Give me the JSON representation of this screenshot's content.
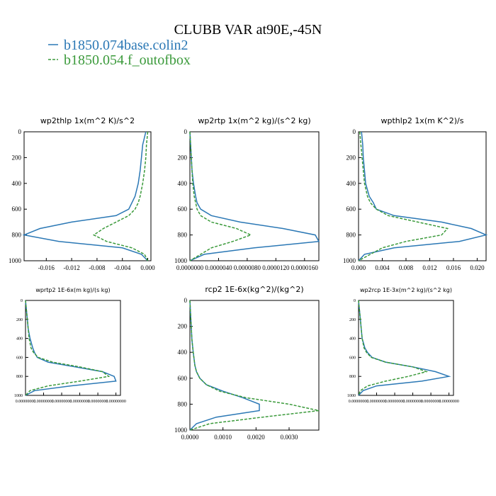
{
  "title": "CLUBB VAR at90E,-45N",
  "legend": [
    {
      "name": "b1850.074base.colin2",
      "color": "#2b78b5"
    },
    {
      "name": "b1850.054.f_outofbox",
      "color": "#3b9a3b"
    }
  ],
  "chart_data": [
    {
      "type": "line",
      "title": "wp2thlp  1x(m^2 K)/s^2",
      "y": [
        0,
        100,
        200,
        300,
        400,
        500,
        550,
        600,
        650,
        700,
        750,
        800,
        850,
        900,
        950,
        1000
      ],
      "series": [
        {
          "values": [
            -0.0003,
            -0.0008,
            -0.001,
            -0.0012,
            -0.0015,
            -0.002,
            -0.0025,
            -0.003,
            -0.005,
            -0.012,
            -0.017,
            -0.0195,
            -0.014,
            -0.004,
            -0.001,
            0
          ]
        },
        {
          "values": [
            0,
            -0.0002,
            -0.0003,
            -0.0005,
            -0.0008,
            -0.0012,
            -0.0015,
            -0.002,
            -0.003,
            -0.005,
            -0.007,
            -0.0085,
            -0.0065,
            -0.0025,
            -0.0005,
            0
          ]
        }
      ],
      "xlim": [
        -0.0195,
        0.0005
      ],
      "xticks": [
        {
          "value": -0.016,
          "label": "-0.016"
        },
        {
          "value": -0.012,
          "label": "-0.012"
        },
        {
          "value": -0.008,
          "label": "-0.008"
        },
        {
          "value": -0.004,
          "label": "-0.004"
        },
        {
          "value": 0,
          "label": "0.000"
        }
      ],
      "ylim": [
        0,
        1000
      ],
      "yticks": [
        0,
        200,
        400,
        600,
        800,
        1000
      ],
      "y_inverted": true
    },
    {
      "type": "line",
      "title": "wp2rtp  1x(m^2 kg)/(s^2 kg)",
      "y": [
        0,
        100,
        200,
        300,
        400,
        500,
        550,
        600,
        650,
        700,
        750,
        800,
        850,
        900,
        950,
        1000
      ],
      "series": [
        {
          "values": [
            0,
            1e-07,
            2e-07,
            3e-07,
            5e-07,
            8e-07,
            1e-06,
            1.5e-06,
            3e-06,
            7e-06,
            1.3e-05,
            1.75e-05,
            1.8e-05,
            9e-06,
            2e-06,
            0
          ]
        },
        {
          "values": [
            0,
            1e-07,
            2e-07,
            3e-07,
            4e-07,
            6e-07,
            8e-07,
            1e-06,
            1.5e-06,
            3e-06,
            6.5e-06,
            8.5e-06,
            6e-06,
            3e-06,
            1.5e-06,
            0
          ]
        }
      ],
      "xlim": [
        0,
        1.8e-05
      ],
      "xticks": [
        {
          "value": 0,
          "label": "0.0000000"
        },
        {
          "value": 4e-06,
          "label": "0.0000040"
        },
        {
          "value": 8e-06,
          "label": "0.0000080"
        },
        {
          "value": 1.2e-05,
          "label": "0.0000120"
        },
        {
          "value": 1.6e-05,
          "label": "0.0000160"
        }
      ],
      "ylim": [
        0,
        1000
      ],
      "yticks": [
        0,
        200,
        400,
        600,
        800,
        1000
      ],
      "y_inverted": true
    },
    {
      "type": "line",
      "title": "wpthlp2  1x(m K^2)/s",
      "y": [
        0,
        100,
        200,
        300,
        400,
        500,
        550,
        600,
        650,
        700,
        750,
        800,
        850,
        900,
        950,
        1000
      ],
      "series": [
        {
          "values": [
            0.0005,
            0.0007,
            0.0008,
            0.001,
            0.0012,
            0.0018,
            0.0025,
            0.003,
            0.006,
            0.014,
            0.019,
            0.0215,
            0.017,
            0.006,
            0.001,
            0
          ]
        },
        {
          "values": [
            0.0002,
            0.0004,
            0.0006,
            0.0008,
            0.001,
            0.0015,
            0.002,
            0.003,
            0.005,
            0.01,
            0.015,
            0.014,
            0.008,
            0.004,
            0.002,
            0
          ]
        }
      ],
      "xlim": [
        0,
        0.0215
      ],
      "xticks": [
        {
          "value": 0,
          "label": "0.000"
        },
        {
          "value": 0.004,
          "label": "0.004"
        },
        {
          "value": 0.008,
          "label": "0.008"
        },
        {
          "value": 0.012,
          "label": "0.012"
        },
        {
          "value": 0.016,
          "label": "0.016"
        },
        {
          "value": 0.02,
          "label": "0.020"
        }
      ],
      "ylim": [
        0,
        1000
      ],
      "yticks": [
        0,
        200,
        400,
        600,
        800,
        1000
      ],
      "y_inverted": true
    },
    {
      "type": "line",
      "title": "wprtp2  1E-6x(m kg)/(s kg)",
      "y": [
        0,
        100,
        200,
        300,
        400,
        500,
        550,
        600,
        650,
        700,
        750,
        800,
        850,
        900,
        950,
        1000
      ],
      "series": [
        {
          "values": [
            0,
            0.01,
            0.02,
            0.03,
            0.05,
            0.08,
            0.1,
            0.13,
            0.25,
            0.55,
            0.85,
            0.98,
            1.0,
            0.5,
            0.1,
            0
          ]
        },
        {
          "values": [
            0,
            0.01,
            0.02,
            0.03,
            0.04,
            0.06,
            0.09,
            0.14,
            0.3,
            0.6,
            0.85,
            0.92,
            0.6,
            0.25,
            0.05,
            0
          ]
        }
      ],
      "xlim": [
        0,
        1.05
      ],
      "xticks": [
        {
          "value": 0,
          "label": "0.00000000"
        },
        {
          "value": 0.2,
          "label": "0.00000000"
        },
        {
          "value": 0.4,
          "label": "0.00000000"
        },
        {
          "value": 0.6,
          "label": "0.00000000"
        },
        {
          "value": 0.8,
          "label": "0.00000000"
        },
        {
          "value": 1.0,
          "label": "0.00000000"
        }
      ],
      "ylim": [
        0,
        1000
      ],
      "yticks": [
        0,
        200,
        400,
        600,
        800,
        1000
      ],
      "y_inverted": true
    },
    {
      "type": "line",
      "title": "rcp2  1E-6x(kg^2)/(kg^2)",
      "y": [
        0,
        100,
        200,
        300,
        400,
        500,
        550,
        600,
        650,
        700,
        750,
        800,
        850,
        900,
        950,
        1000
      ],
      "series": [
        {
          "values": [
            0,
            2e-05,
            4e-05,
            6e-05,
            0.0001,
            0.00015,
            0.0002,
            0.0003,
            0.0005,
            0.001,
            0.0016,
            0.0021,
            0.0021,
            0.0008,
            0.0002,
            0
          ]
        },
        {
          "values": [
            0,
            2e-05,
            4e-05,
            6e-05,
            0.0001,
            0.00015,
            0.0002,
            0.0003,
            0.0005,
            0.0009,
            0.0017,
            0.003,
            0.0039,
            0.0022,
            0.0006,
            0
          ]
        }
      ],
      "xlim": [
        0,
        0.0039
      ],
      "xticks": [
        {
          "value": 0,
          "label": "0.0000"
        },
        {
          "value": 0.001,
          "label": "0.0010"
        },
        {
          "value": 0.002,
          "label": "0.0020"
        },
        {
          "value": 0.003,
          "label": "0.0030"
        }
      ],
      "ylim": [
        0,
        1000
      ],
      "yticks": [
        0,
        200,
        400,
        600,
        800,
        1000
      ],
      "y_inverted": true
    },
    {
      "type": "line",
      "title": "wp2rcp  1E-3x(m^2 kg)/(s^2 kg)",
      "y": [
        0,
        100,
        200,
        300,
        400,
        500,
        550,
        600,
        650,
        700,
        750,
        800,
        850,
        900,
        950,
        1000
      ],
      "series": [
        {
          "values": [
            0,
            0.01,
            0.02,
            0.03,
            0.04,
            0.07,
            0.1,
            0.15,
            0.3,
            0.6,
            0.85,
            1.0,
            0.7,
            0.2,
            0.05,
            0
          ]
        },
        {
          "values": [
            0,
            0.01,
            0.02,
            0.03,
            0.04,
            0.06,
            0.09,
            0.14,
            0.3,
            0.6,
            0.75,
            0.55,
            0.3,
            0.1,
            0.02,
            0
          ]
        }
      ],
      "xlim": [
        0,
        1.05
      ],
      "xticks": [
        {
          "value": 0,
          "label": "0.00000000"
        },
        {
          "value": 0.2,
          "label": "0.00000000"
        },
        {
          "value": 0.4,
          "label": "0.00000000"
        },
        {
          "value": 0.6,
          "label": "0.00000000"
        },
        {
          "value": 0.8,
          "label": "0.00000000"
        },
        {
          "value": 1.0,
          "label": "0.00000000"
        }
      ],
      "ylim": [
        0,
        1000
      ],
      "yticks": [
        0,
        200,
        400,
        600,
        800,
        1000
      ],
      "y_inverted": true
    }
  ]
}
